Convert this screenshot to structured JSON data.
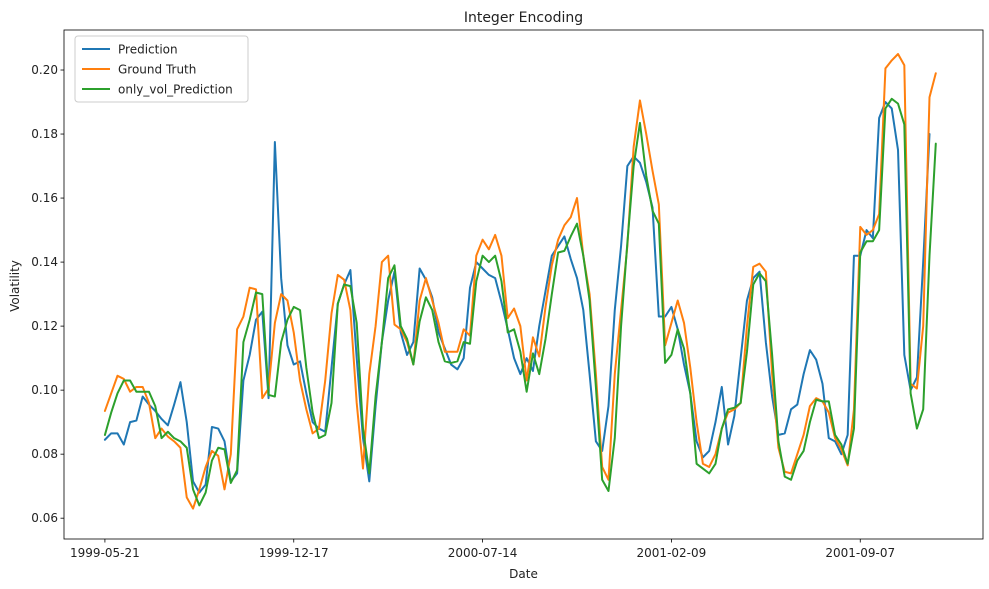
{
  "chart_data": {
    "type": "line",
    "title": "Integer Encoding",
    "xlabel": "Date",
    "ylabel": "Volatility",
    "x_ticks": [
      "1999-05-21",
      "1999-12-17",
      "2000-07-14",
      "2001-02-09",
      "2001-09-07"
    ],
    "x_tick_index": [
      0,
      30,
      60,
      90,
      120
    ],
    "y_ticks": [
      "0.06",
      "0.08",
      "0.10",
      "0.12",
      "0.14",
      "0.16",
      "0.18",
      "0.20"
    ],
    "xlim": [
      -6.5,
      139.5
    ],
    "ylim": [
      0.0535,
      0.2125
    ],
    "grid": false,
    "legend_position": "top-left",
    "series": [
      {
        "name": "Prediction",
        "color": "#1f77b4",
        "values": [
          0.0845,
          0.0865,
          0.0865,
          0.083,
          0.09,
          0.0905,
          0.098,
          0.0955,
          0.0935,
          0.091,
          0.089,
          0.0955,
          0.1025,
          0.09,
          0.0715,
          0.068,
          0.0705,
          0.0885,
          0.088,
          0.084,
          0.0715,
          0.074,
          0.103,
          0.111,
          0.122,
          0.1245,
          0.0975,
          0.1775,
          0.135,
          0.114,
          0.108,
          0.109,
          0.099,
          0.09,
          0.088,
          0.087,
          0.107,
          0.127,
          0.133,
          0.1375,
          0.11,
          0.085,
          0.0715,
          0.095,
          0.115,
          0.128,
          0.137,
          0.118,
          0.111,
          0.115,
          0.138,
          0.1345,
          0.129,
          0.118,
          0.113,
          0.108,
          0.1065,
          0.11,
          0.132,
          0.14,
          0.138,
          0.136,
          0.135,
          0.1275,
          0.119,
          0.11,
          0.105,
          0.11,
          0.106,
          0.12,
          0.131,
          0.142,
          0.145,
          0.148,
          0.141,
          0.135,
          0.125,
          0.105,
          0.084,
          0.081,
          0.095,
          0.125,
          0.145,
          0.17,
          0.173,
          0.171,
          0.165,
          0.157,
          0.123,
          0.123,
          0.126,
          0.119,
          0.108,
          0.099,
          0.084,
          0.079,
          0.081,
          0.09,
          0.101,
          0.083,
          0.092,
          0.11,
          0.128,
          0.135,
          0.137,
          0.115,
          0.098,
          0.086,
          0.0865,
          0.094,
          0.0955,
          0.105,
          0.1125,
          0.1095,
          0.102,
          0.085,
          0.084,
          0.08,
          0.086,
          0.142,
          0.142,
          0.15,
          0.1475,
          0.185,
          0.19,
          0.188,
          0.175,
          0.111,
          0.1,
          0.104,
          0.14,
          0.18
        ]
      },
      {
        "name": "Ground Truth",
        "color": "#ff7f0e",
        "values": [
          0.0935,
          0.099,
          0.1045,
          0.1035,
          0.0995,
          0.101,
          0.101,
          0.096,
          0.085,
          0.088,
          0.0855,
          0.084,
          0.082,
          0.0665,
          0.063,
          0.069,
          0.076,
          0.081,
          0.0795,
          0.069,
          0.08,
          0.119,
          0.123,
          0.132,
          0.1315,
          0.0975,
          0.1005,
          0.121,
          0.13,
          0.128,
          0.118,
          0.103,
          0.094,
          0.0865,
          0.088,
          0.103,
          0.124,
          0.136,
          0.1345,
          0.125,
          0.096,
          0.0755,
          0.105,
          0.12,
          0.14,
          0.142,
          0.1205,
          0.119,
          0.115,
          0.108,
          0.128,
          0.135,
          0.128,
          0.121,
          0.112,
          0.112,
          0.112,
          0.119,
          0.117,
          0.142,
          0.147,
          0.144,
          0.1485,
          0.142,
          0.1225,
          0.1255,
          0.12,
          0.103,
          0.1165,
          0.1105,
          0.126,
          0.139,
          0.147,
          0.1515,
          0.154,
          0.16,
          0.142,
          0.13,
          0.105,
          0.076,
          0.072,
          0.105,
          0.125,
          0.145,
          0.176,
          0.1905,
          0.18,
          0.1685,
          0.158,
          0.114,
          0.121,
          0.128,
          0.121,
          0.107,
          0.09,
          0.077,
          0.076,
          0.08,
          0.088,
          0.093,
          0.094,
          0.096,
          0.12,
          0.1385,
          0.1395,
          0.137,
          0.105,
          0.082,
          0.0745,
          0.074,
          0.08,
          0.086,
          0.095,
          0.0975,
          0.0965,
          0.093,
          0.085,
          0.0815,
          0.0765,
          0.094,
          0.151,
          0.1485,
          0.15,
          0.155,
          0.2005,
          0.203,
          0.205,
          0.2015,
          0.102,
          0.1005,
          0.12,
          0.1915,
          0.199
        ]
      },
      {
        "name": "only_vol_Prediction",
        "color": "#2ca02c",
        "values": [
          0.086,
          0.093,
          0.099,
          0.103,
          0.103,
          0.0995,
          0.0995,
          0.0995,
          0.095,
          0.085,
          0.087,
          0.085,
          0.084,
          0.082,
          0.069,
          0.064,
          0.068,
          0.078,
          0.082,
          0.0815,
          0.071,
          0.075,
          0.115,
          0.122,
          0.1305,
          0.13,
          0.0985,
          0.098,
          0.115,
          0.122,
          0.126,
          0.125,
          0.107,
          0.093,
          0.085,
          0.086,
          0.096,
          0.127,
          0.133,
          0.1325,
          0.121,
          0.088,
          0.074,
          0.098,
          0.115,
          0.135,
          0.139,
          0.12,
          0.116,
          0.108,
          0.1215,
          0.129,
          0.125,
          0.115,
          0.109,
          0.1085,
          0.109,
          0.115,
          0.1145,
          0.134,
          0.142,
          0.14,
          0.142,
          0.134,
          0.118,
          0.119,
          0.112,
          0.0995,
          0.1115,
          0.105,
          0.116,
          0.13,
          0.143,
          0.1435,
          0.148,
          0.152,
          0.142,
          0.128,
          0.101,
          0.072,
          0.0685,
          0.085,
          0.12,
          0.146,
          0.17,
          0.1835,
          0.167,
          0.156,
          0.152,
          0.1085,
          0.111,
          0.119,
          0.113,
          0.099,
          0.077,
          0.0755,
          0.074,
          0.077,
          0.088,
          0.094,
          0.0945,
          0.096,
          0.112,
          0.133,
          0.1365,
          0.134,
          0.111,
          0.084,
          0.073,
          0.072,
          0.078,
          0.081,
          0.09,
          0.097,
          0.0965,
          0.0965,
          0.086,
          0.083,
          0.077,
          0.088,
          0.143,
          0.1465,
          0.1465,
          0.15,
          0.188,
          0.191,
          0.1895,
          0.183,
          0.099,
          0.088,
          0.094,
          0.142,
          0.177
        ]
      }
    ]
  }
}
